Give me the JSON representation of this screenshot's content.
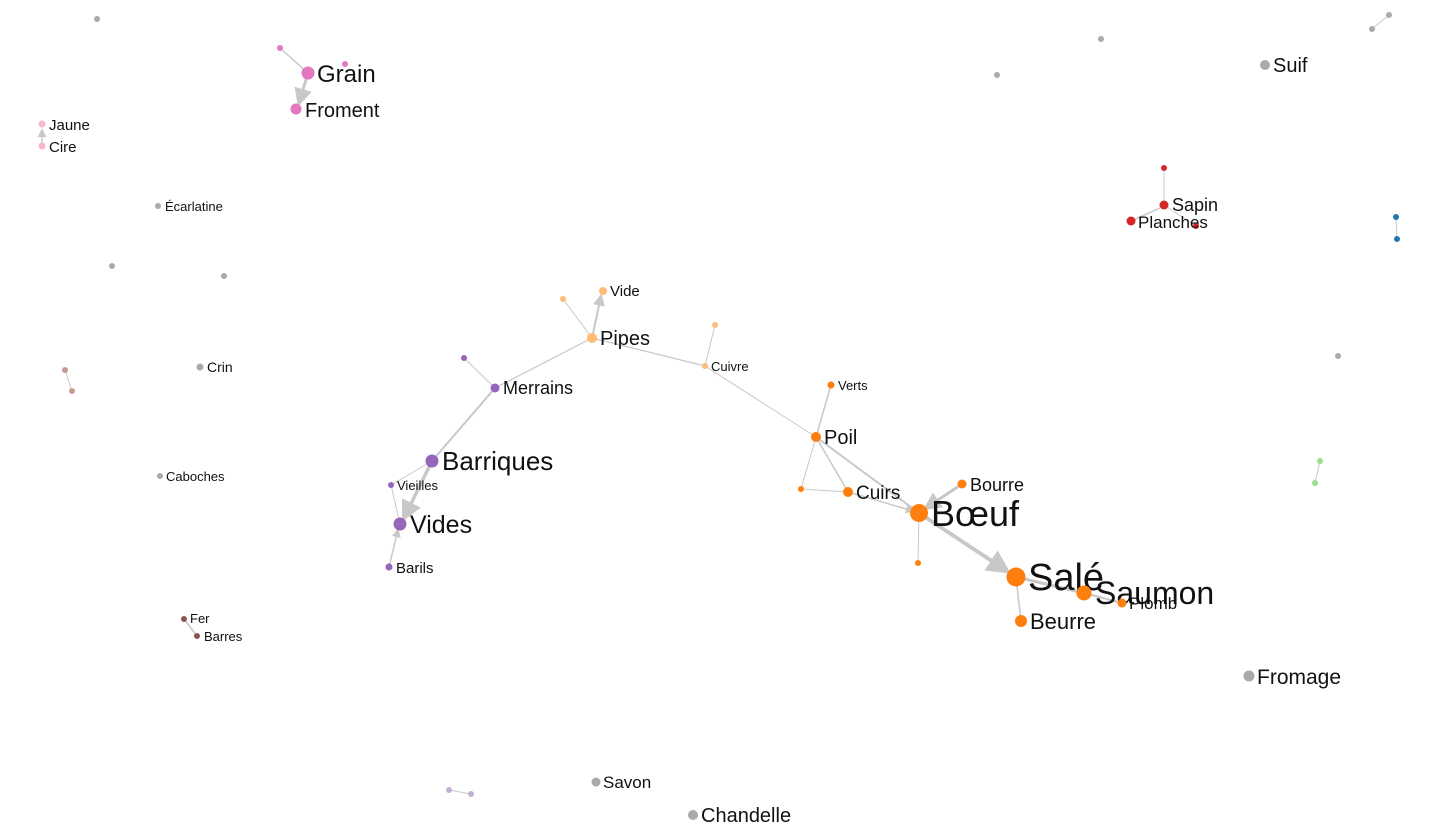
{
  "colors": {
    "orange": "#ff7f0e",
    "purple": "#9467bd",
    "peach": "#ffbb78",
    "pink": "#e377c2",
    "light_pink": "#f7b6d2",
    "red": "#d62728",
    "blue": "#1f77b4",
    "light_green": "#98df8a",
    "brown": "#8c564b",
    "rose_brown": "#c49c94",
    "lavender": "#c5b0d5",
    "gray": "#aaaaaa",
    "edge": "#c8c8c8"
  },
  "nodes": {
    "grain": "Grain",
    "froment": "Froment",
    "jaune": "Jaune",
    "cire": "Cire",
    "ecarlatine": "Écarlatine",
    "crin": "Crin",
    "caboches": "Caboches",
    "fer": "Fer",
    "barres": "Barres",
    "vide": "Vide",
    "pipes": "Pipes",
    "cuivre": "Cuivre",
    "merrains": "Merrains",
    "barriques": "Barriques",
    "vieilles": "Vieilles",
    "vides": "Vides",
    "barils": "Barils",
    "verts": "Verts",
    "poil": "Poil",
    "cuirs": "Cuirs",
    "bourre": "Bourre",
    "boeuf": "Bœuf",
    "sale": "Salé",
    "saumon": "Saumon",
    "plomb": "Plomb",
    "beurre": "Beurre",
    "suif": "Suif",
    "sapin": "Sapin",
    "planches": "Planches",
    "fromage": "Fromage",
    "savon": "Savon",
    "chandelle": "Chandelle"
  }
}
